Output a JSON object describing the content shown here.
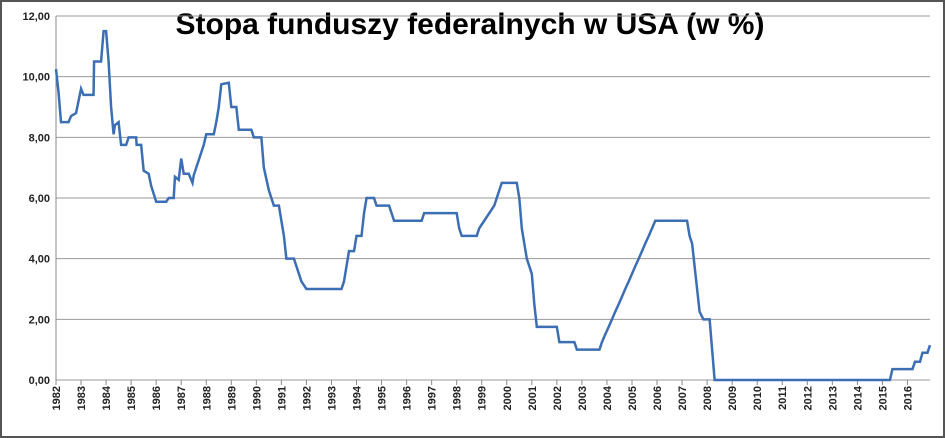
{
  "chart_data": {
    "type": "line",
    "title": "Stopa funduszy federalnych w USA (w %)",
    "x": [
      1982.0,
      1982.1,
      1982.2,
      1982.5,
      1982.6,
      1982.8,
      1983.0,
      1983.1,
      1983.5,
      1983.52,
      1983.8,
      1983.9,
      1984.0,
      1984.1,
      1984.2,
      1984.3,
      1984.35,
      1984.5,
      1984.6,
      1984.8,
      1984.9,
      1985.2,
      1985.22,
      1985.4,
      1985.5,
      1985.7,
      1985.8,
      1986.0,
      1986.4,
      1986.5,
      1986.7,
      1986.75,
      1986.9,
      1987.0,
      1987.1,
      1987.3,
      1987.45,
      1987.5,
      1987.7,
      1987.9,
      1988.0,
      1988.3,
      1988.4,
      1988.5,
      1988.6,
      1988.9,
      1989.0,
      1989.2,
      1989.3,
      1989.8,
      1989.9,
      1990.2,
      1990.3,
      1990.5,
      1990.7,
      1990.9,
      1991.0,
      1991.1,
      1991.2,
      1991.5,
      1991.6,
      1991.8,
      1992.0,
      1993.4,
      1993.5,
      1993.6,
      1993.7,
      1993.9,
      1994.0,
      1994.2,
      1994.3,
      1994.4,
      1994.7,
      1994.8,
      1995.3,
      1995.5,
      1996.6,
      1996.7,
      1998.0,
      1998.1,
      1998.2,
      1998.8,
      1998.9,
      1999.1,
      1999.3,
      1999.5,
      1999.6,
      1999.8,
      2000.4,
      2000.5,
      2000.6,
      2000.8,
      2000.9,
      2001.0,
      2001.1,
      2001.2,
      2002.0,
      2002.1,
      2002.7,
      2002.8,
      2003.7,
      2003.8,
      2003.93,
      2004.07,
      2004.2,
      2004.33,
      2004.47,
      2004.6,
      2004.73,
      2004.87,
      2005.0,
      2005.13,
      2005.27,
      2005.4,
      2005.53,
      2005.67,
      2005.8,
      2005.93,
      2007.2,
      2007.3,
      2007.4,
      2007.6,
      2007.7,
      2007.85,
      2008.1,
      2008.2,
      2008.3,
      2015.3,
      2015.4,
      2016.2,
      2016.3,
      2016.5,
      2016.6,
      2016.8,
      2016.9
    ],
    "series": [
      {
        "color": "#3c6eb4",
        "values": [
          10.25,
          9.5,
          8.5,
          8.5,
          8.7,
          8.8,
          9.6,
          9.4,
          9.4,
          10.5,
          10.5,
          11.5,
          11.5,
          10.5,
          9.0,
          8.1,
          8.4,
          8.5,
          7.75,
          7.75,
          8.0,
          8.0,
          7.75,
          7.75,
          6.9,
          6.8,
          6.4,
          5.875,
          5.875,
          6.0,
          6.0,
          6.7,
          6.6,
          7.3,
          6.8,
          6.8,
          6.5,
          6.75,
          7.25,
          7.75,
          8.1,
          8.1,
          8.5,
          9.0,
          9.75,
          9.8,
          9.0,
          9.0,
          8.25,
          8.25,
          8.0,
          8.0,
          7.0,
          6.25,
          5.75,
          5.75,
          5.25,
          4.75,
          4.0,
          4.0,
          3.75,
          3.25,
          3.0,
          3.0,
          3.25,
          3.75,
          4.25,
          4.25,
          4.75,
          4.75,
          5.5,
          6.0,
          6.0,
          5.75,
          5.75,
          5.25,
          5.25,
          5.5,
          5.5,
          5.0,
          4.75,
          4.75,
          5.0,
          5.25,
          5.5,
          5.75,
          6.0,
          6.5,
          6.5,
          6.0,
          5.0,
          4.0,
          3.75,
          3.5,
          2.5,
          1.75,
          1.75,
          1.25,
          1.25,
          1.0,
          1.0,
          1.25,
          1.5,
          1.75,
          2.0,
          2.25,
          2.5,
          2.75,
          3.0,
          3.25,
          3.5,
          3.75,
          4.0,
          4.25,
          4.5,
          4.75,
          5.0,
          5.25,
          5.25,
          4.75,
          4.5,
          3.0,
          2.25,
          2.0,
          2.0,
          1.0,
          0.0,
          0.0,
          0.36,
          0.36,
          0.6,
          0.6,
          0.9,
          0.9,
          1.15
        ]
      }
    ],
    "xlim": [
      1982,
      2016.9
    ],
    "xticks": [
      1982,
      1983,
      1984,
      1985,
      1986,
      1987,
      1988,
      1989,
      1990,
      1991,
      1992,
      1993,
      1994,
      1995,
      1996,
      1997,
      1998,
      1999,
      2000,
      2001,
      2002,
      2003,
      2004,
      2005,
      2006,
      2007,
      2008,
      2009,
      2010,
      2011,
      2012,
      2013,
      2014,
      2015,
      2016
    ],
    "ylim": [
      0,
      12
    ],
    "yticks": [
      {
        "value": 0,
        "label": "0,00"
      },
      {
        "value": 2,
        "label": "2,00"
      },
      {
        "value": 4,
        "label": "4,00"
      },
      {
        "value": 6,
        "label": "6,00"
      },
      {
        "value": 8,
        "label": "8,00"
      },
      {
        "value": 10,
        "label": "10,00"
      },
      {
        "value": 12,
        "label": "12,00"
      }
    ],
    "grid": true
  }
}
